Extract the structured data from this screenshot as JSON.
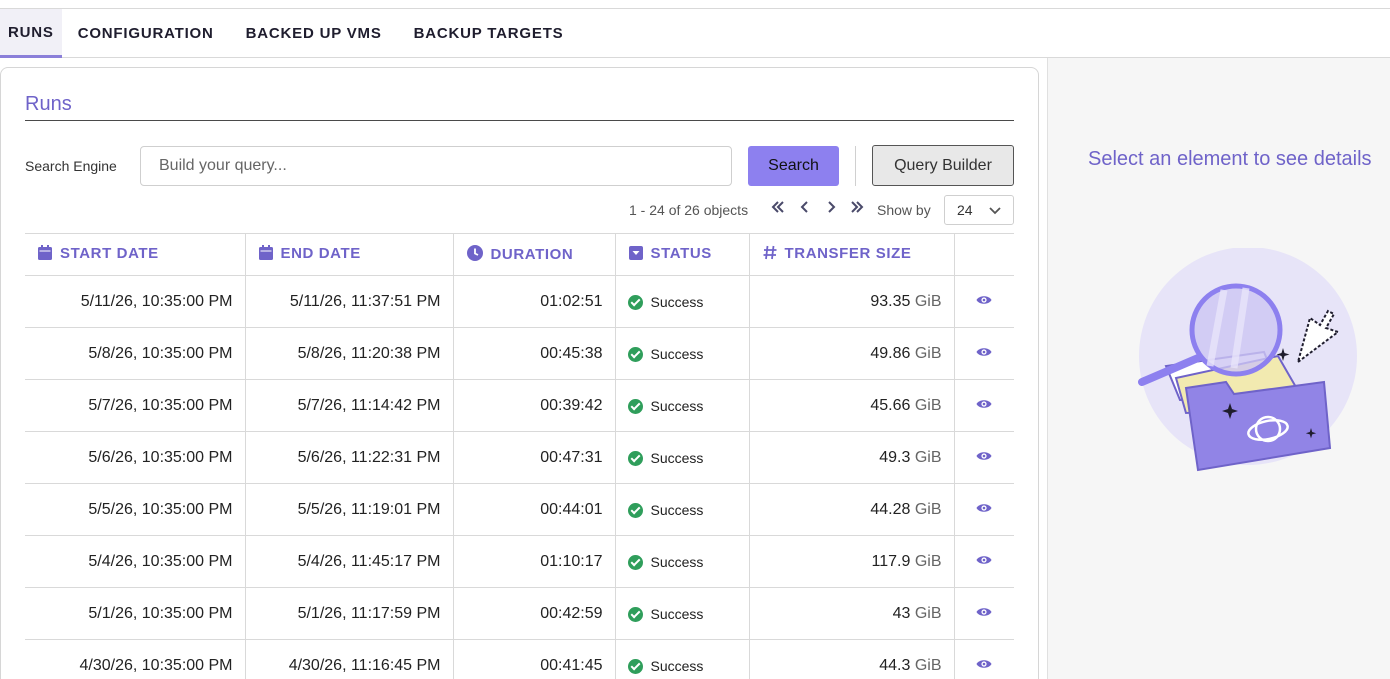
{
  "tabs": [
    {
      "label": "RUNS",
      "active": true
    },
    {
      "label": "CONFIGURATION"
    },
    {
      "label": "BACKED UP VMS"
    },
    {
      "label": "BACKUP TARGETS"
    }
  ],
  "runs": {
    "title": "Runs",
    "search_label": "Search Engine",
    "search_placeholder": "Build your query...",
    "search_button": "Search",
    "query_builder_button": "Query Builder",
    "pager_text": "1 - 24 of 26 objects",
    "show_by_label": "Show by",
    "show_by_value": "24"
  },
  "table": {
    "columns": [
      {
        "label": "START DATE",
        "icon": "calendar-icon"
      },
      {
        "label": "END DATE",
        "icon": "calendar-icon"
      },
      {
        "label": "DURATION",
        "icon": "clock-icon"
      },
      {
        "label": "STATUS",
        "icon": "status-dropdown-icon"
      },
      {
        "label": "TRANSFER SIZE",
        "icon": "hash-icon"
      }
    ],
    "rows": [
      {
        "start": "5/11/26, 10:35:00 PM",
        "end": "5/11/26, 11:37:51 PM",
        "duration": "01:02:51",
        "status": "Success",
        "size": "93.35",
        "unit": "GiB"
      },
      {
        "start": "5/8/26, 10:35:00 PM",
        "end": "5/8/26, 11:20:38 PM",
        "duration": "00:45:38",
        "status": "Success",
        "size": "49.86",
        "unit": "GiB"
      },
      {
        "start": "5/7/26, 10:35:00 PM",
        "end": "5/7/26, 11:14:42 PM",
        "duration": "00:39:42",
        "status": "Success",
        "size": "45.66",
        "unit": "GiB"
      },
      {
        "start": "5/6/26, 10:35:00 PM",
        "end": "5/6/26, 11:22:31 PM",
        "duration": "00:47:31",
        "status": "Success",
        "size": "49.3",
        "unit": "GiB"
      },
      {
        "start": "5/5/26, 10:35:00 PM",
        "end": "5/5/26, 11:19:01 PM",
        "duration": "00:44:01",
        "status": "Success",
        "size": "44.28",
        "unit": "GiB"
      },
      {
        "start": "5/4/26, 10:35:00 PM",
        "end": "5/4/26, 11:45:17 PM",
        "duration": "01:10:17",
        "status": "Success",
        "size": "117.9",
        "unit": "GiB"
      },
      {
        "start": "5/1/26, 10:35:00 PM",
        "end": "5/1/26, 11:17:59 PM",
        "duration": "00:42:59",
        "status": "Success",
        "size": "43",
        "unit": "GiB"
      },
      {
        "start": "4/30/26, 10:35:00 PM",
        "end": "4/30/26, 11:16:45 PM",
        "duration": "00:41:45",
        "status": "Success",
        "size": "44.3",
        "unit": "GiB"
      }
    ]
  },
  "details": {
    "message": "Select an element to see details"
  },
  "colors": {
    "accent": "#6f63c9",
    "button": "#8d80ef",
    "success": "#2f9e5b"
  }
}
